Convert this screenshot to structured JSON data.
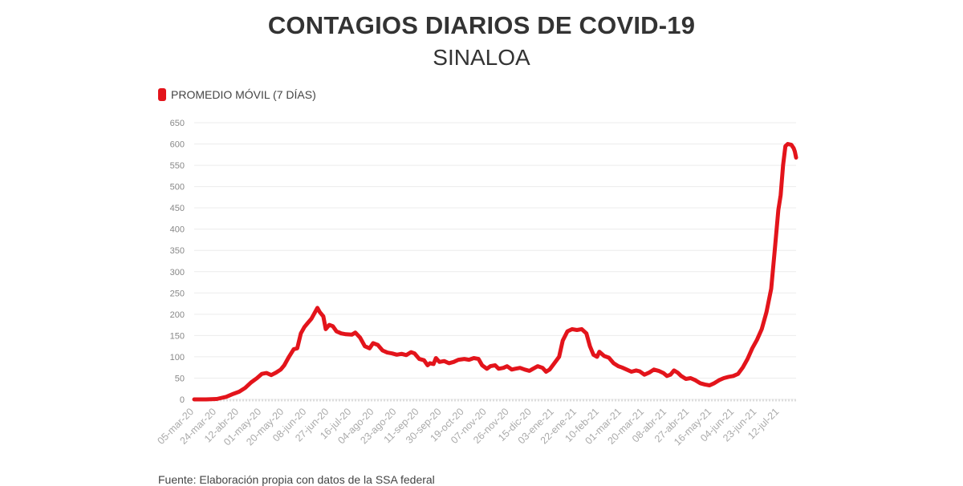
{
  "chart_data": {
    "type": "line",
    "title": "CONTAGIOS DIARIOS DE COVID-19",
    "subtitle": "SINALOA",
    "legend": [
      {
        "label": "PROMEDIO MÓVIL (7 DÍAS)",
        "color": "#e3141b"
      }
    ],
    "legend_placement": "top-left",
    "grid": true,
    "ylim": [
      0,
      650
    ],
    "yticks": [
      0,
      50,
      100,
      150,
      200,
      250,
      300,
      350,
      400,
      450,
      500,
      550,
      600,
      650
    ],
    "x_tick_labels": [
      "05-mar-20",
      "24-mar-20",
      "12-abr-20",
      "01-may-20",
      "20-may-20",
      "08-jun-20",
      "27-jun-20",
      "16-jul-20",
      "04-ago-20",
      "23-ago-20",
      "11-sep-20",
      "30-sep-20",
      "19-oct-20",
      "07-nov-20",
      "26-nov-20",
      "15-dic-20",
      "03-ene-21",
      "22-ene-21",
      "10-feb-21",
      "01-mar-21",
      "20-mar-21",
      "08-abr-21",
      "27-abr-21",
      "16-may-21",
      "04-jun-21",
      "23-jun-21",
      "12-jul-21"
    ],
    "series": [
      {
        "name": "PROMEDIO MÓVIL (7 DÍAS)",
        "color": "#e3141b",
        "points": [
          [
            "2020-03-05",
            0
          ],
          [
            "2020-03-15",
            0
          ],
          [
            "2020-03-24",
            1
          ],
          [
            "2020-04-01",
            6
          ],
          [
            "2020-04-07",
            13
          ],
          [
            "2020-04-12",
            18
          ],
          [
            "2020-04-17",
            27
          ],
          [
            "2020-04-22",
            40
          ],
          [
            "2020-04-27",
            50
          ],
          [
            "2020-05-01",
            60
          ],
          [
            "2020-05-05",
            62
          ],
          [
            "2020-05-09",
            57
          ],
          [
            "2020-05-13",
            63
          ],
          [
            "2020-05-17",
            70
          ],
          [
            "2020-05-20",
            80
          ],
          [
            "2020-05-24",
            100
          ],
          [
            "2020-05-28",
            118
          ],
          [
            "2020-05-31",
            120
          ],
          [
            "2020-06-03",
            155
          ],
          [
            "2020-06-06",
            170
          ],
          [
            "2020-06-09",
            180
          ],
          [
            "2020-06-12",
            190
          ],
          [
            "2020-06-15",
            205
          ],
          [
            "2020-06-17",
            215
          ],
          [
            "2020-06-19",
            205
          ],
          [
            "2020-06-22",
            195
          ],
          [
            "2020-06-24",
            165
          ],
          [
            "2020-06-27",
            175
          ],
          [
            "2020-06-30",
            172
          ],
          [
            "2020-07-03",
            160
          ],
          [
            "2020-07-07",
            155
          ],
          [
            "2020-07-11",
            153
          ],
          [
            "2020-07-16",
            152
          ],
          [
            "2020-07-19",
            157
          ],
          [
            "2020-07-23",
            145
          ],
          [
            "2020-07-27",
            125
          ],
          [
            "2020-07-31",
            120
          ],
          [
            "2020-08-03",
            132
          ],
          [
            "2020-08-07",
            128
          ],
          [
            "2020-08-11",
            115
          ],
          [
            "2020-08-15",
            110
          ],
          [
            "2020-08-19",
            108
          ],
          [
            "2020-08-23",
            105
          ],
          [
            "2020-08-27",
            107
          ],
          [
            "2020-08-31",
            104
          ],
          [
            "2020-09-04",
            111
          ],
          [
            "2020-09-07",
            108
          ],
          [
            "2020-09-11",
            95
          ],
          [
            "2020-09-15",
            92
          ],
          [
            "2020-09-18",
            80
          ],
          [
            "2020-09-20",
            85
          ],
          [
            "2020-09-23",
            83
          ],
          [
            "2020-09-25",
            97
          ],
          [
            "2020-09-28",
            88
          ],
          [
            "2020-10-02",
            90
          ],
          [
            "2020-10-06",
            85
          ],
          [
            "2020-10-10",
            88
          ],
          [
            "2020-10-14",
            93
          ],
          [
            "2020-10-19",
            95
          ],
          [
            "2020-10-23",
            93
          ],
          [
            "2020-10-27",
            97
          ],
          [
            "2020-10-31",
            95
          ],
          [
            "2020-11-03",
            80
          ],
          [
            "2020-11-07",
            72
          ],
          [
            "2020-11-10",
            78
          ],
          [
            "2020-11-14",
            80
          ],
          [
            "2020-11-17",
            72
          ],
          [
            "2020-11-21",
            74
          ],
          [
            "2020-11-24",
            78
          ],
          [
            "2020-11-28",
            70
          ],
          [
            "2020-12-01",
            72
          ],
          [
            "2020-12-05",
            74
          ],
          [
            "2020-12-09",
            70
          ],
          [
            "2020-12-13",
            67
          ],
          [
            "2020-12-16",
            72
          ],
          [
            "2020-12-20",
            78
          ],
          [
            "2020-12-24",
            74
          ],
          [
            "2020-12-27",
            65
          ],
          [
            "2020-12-30",
            70
          ],
          [
            "2021-01-03",
            85
          ],
          [
            "2021-01-07",
            100
          ],
          [
            "2021-01-10",
            138
          ],
          [
            "2021-01-14",
            160
          ],
          [
            "2021-01-18",
            165
          ],
          [
            "2021-01-22",
            163
          ],
          [
            "2021-01-26",
            165
          ],
          [
            "2021-01-30",
            155
          ],
          [
            "2021-02-02",
            125
          ],
          [
            "2021-02-05",
            105
          ],
          [
            "2021-02-08",
            100
          ],
          [
            "2021-02-10",
            112
          ],
          [
            "2021-02-14",
            102
          ],
          [
            "2021-02-18",
            98
          ],
          [
            "2021-02-22",
            85
          ],
          [
            "2021-02-26",
            78
          ],
          [
            "2021-03-01",
            75
          ],
          [
            "2021-03-05",
            70
          ],
          [
            "2021-03-09",
            65
          ],
          [
            "2021-03-13",
            68
          ],
          [
            "2021-03-16",
            66
          ],
          [
            "2021-03-20",
            58
          ],
          [
            "2021-03-24",
            63
          ],
          [
            "2021-03-28",
            70
          ],
          [
            "2021-04-01",
            67
          ],
          [
            "2021-04-05",
            62
          ],
          [
            "2021-04-08",
            55
          ],
          [
            "2021-04-11",
            58
          ],
          [
            "2021-04-14",
            68
          ],
          [
            "2021-04-17",
            63
          ],
          [
            "2021-04-20",
            55
          ],
          [
            "2021-04-24",
            48
          ],
          [
            "2021-04-28",
            50
          ],
          [
            "2021-05-02",
            45
          ],
          [
            "2021-05-06",
            38
          ],
          [
            "2021-05-10",
            35
          ],
          [
            "2021-05-14",
            33
          ],
          [
            "2021-05-18",
            38
          ],
          [
            "2021-05-22",
            45
          ],
          [
            "2021-05-26",
            50
          ],
          [
            "2021-05-30",
            53
          ],
          [
            "2021-06-03",
            55
          ],
          [
            "2021-06-07",
            60
          ],
          [
            "2021-06-11",
            75
          ],
          [
            "2021-06-15",
            95
          ],
          [
            "2021-06-19",
            120
          ],
          [
            "2021-06-23",
            140
          ],
          [
            "2021-06-27",
            165
          ],
          [
            "2021-07-01",
            205
          ],
          [
            "2021-07-05",
            260
          ],
          [
            "2021-07-08",
            350
          ],
          [
            "2021-07-11",
            445
          ],
          [
            "2021-07-13",
            480
          ],
          [
            "2021-07-15",
            550
          ],
          [
            "2021-07-17",
            595
          ],
          [
            "2021-07-19",
            600
          ],
          [
            "2021-07-22",
            598
          ],
          [
            "2021-07-24",
            590
          ],
          [
            "2021-07-25",
            582
          ],
          [
            "2021-07-26",
            568
          ]
        ]
      }
    ],
    "source": "Fuente: Elaboración propia con datos de la SSA federal"
  }
}
